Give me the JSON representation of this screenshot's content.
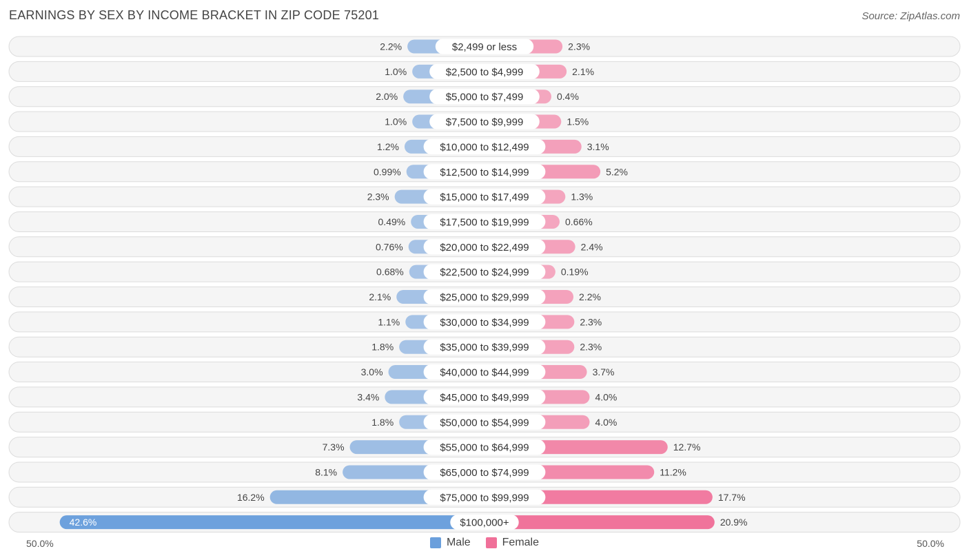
{
  "title": "EARNINGS BY SEX BY INCOME BRACKET IN ZIP CODE 75201",
  "source": "Source: ZipAtlas.com",
  "colors": {
    "male": "#a8c4e6",
    "male_strong": "#6a9fdc",
    "female": "#f4a8c0",
    "female_strong": "#f07099",
    "row_bg": "#efefef",
    "row_border": "#dcdcdc"
  },
  "legend": {
    "male_label": "Male",
    "female_label": "Female"
  },
  "axis": {
    "left_label": "50.0%",
    "right_label": "50.0%"
  },
  "chart_data": {
    "type": "bar",
    "orientation": "horizontal-diverging",
    "title": "EARNINGS BY SEX BY INCOME BRACKET IN ZIP CODE 75201",
    "xlim": [
      -50,
      50
    ],
    "categories": [
      "$2,499 or less",
      "$2,500 to $4,999",
      "$5,000 to $7,499",
      "$7,500 to $9,999",
      "$10,000 to $12,499",
      "$12,500 to $14,999",
      "$15,000 to $17,499",
      "$17,500 to $19,999",
      "$20,000 to $22,499",
      "$22,500 to $24,999",
      "$25,000 to $29,999",
      "$30,000 to $34,999",
      "$35,000 to $39,999",
      "$40,000 to $44,999",
      "$45,000 to $49,999",
      "$50,000 to $54,999",
      "$55,000 to $64,999",
      "$65,000 to $74,999",
      "$75,000 to $99,999",
      "$100,000+"
    ],
    "series": [
      {
        "name": "Male",
        "values": [
          2.2,
          1.0,
          2.0,
          1.0,
          1.2,
          0.99,
          2.3,
          0.49,
          0.76,
          0.68,
          2.1,
          1.1,
          1.8,
          3.0,
          3.4,
          1.8,
          7.3,
          8.1,
          16.2,
          42.6
        ],
        "labels": [
          "2.2%",
          "1.0%",
          "2.0%",
          "1.0%",
          "1.2%",
          "0.99%",
          "2.3%",
          "0.49%",
          "0.76%",
          "0.68%",
          "2.1%",
          "1.1%",
          "1.8%",
          "3.0%",
          "3.4%",
          "1.8%",
          "7.3%",
          "8.1%",
          "16.2%",
          "42.6%"
        ]
      },
      {
        "name": "Female",
        "values": [
          2.3,
          2.1,
          0.4,
          1.5,
          3.1,
          5.2,
          1.3,
          0.66,
          2.4,
          0.19,
          2.2,
          2.3,
          2.3,
          3.7,
          4.0,
          4.0,
          12.7,
          11.2,
          17.7,
          20.9
        ],
        "labels": [
          "2.3%",
          "2.1%",
          "0.4%",
          "1.5%",
          "3.1%",
          "5.2%",
          "1.3%",
          "0.66%",
          "2.4%",
          "0.19%",
          "2.2%",
          "2.3%",
          "2.3%",
          "3.7%",
          "4.0%",
          "4.0%",
          "12.7%",
          "11.2%",
          "17.7%",
          "20.9%"
        ]
      }
    ],
    "legend": [
      "Male",
      "Female"
    ],
    "legend_position": "bottom-center"
  }
}
